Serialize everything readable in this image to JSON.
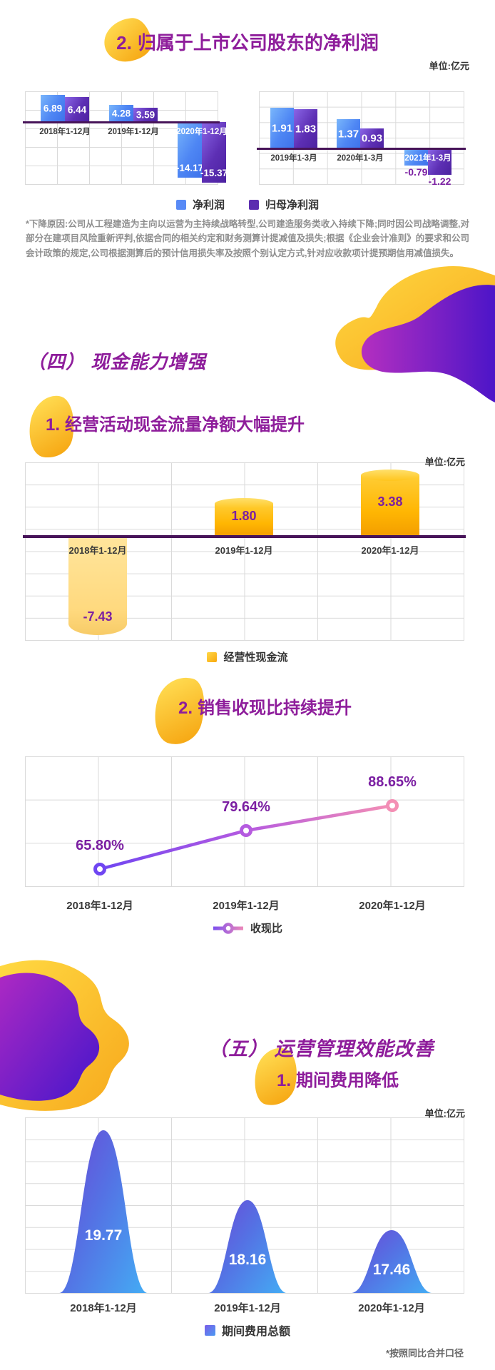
{
  "net_profit": {
    "number": "2.",
    "title": "归属于上市公司股东的净利润",
    "unit": "单位:亿元",
    "legend": [
      "净利润",
      "归母净利润"
    ],
    "footnote": "*下降原因:公司从工程建造为主向以运营为主持续战略转型,公司建造服务类收入持续下降;同时因公司战略调整,对部分在建项目风险重新评判,依据合同的相关约定和财务测算计提减值及损失;根据《企业会计准则》的要求和公司会计政策的规定,公司根据测算后的预计信用损失率及按照个别认定方式,针对应收款项计提预期信用减值损失。"
  },
  "section4": {
    "heading": "（四） 现金能力增强"
  },
  "cash_flow": {
    "number": "1.",
    "title": "经营活动现金流量净额大幅提升",
    "unit": "单位:亿元",
    "legend": "经营性现金流"
  },
  "collection": {
    "number": "2.",
    "title": "销售收现比持续提升",
    "legend": "收现比"
  },
  "section5": {
    "heading": "（五） 运营管理效能改善"
  },
  "expense": {
    "number": "1.",
    "title": "期间费用降低",
    "unit": "单位:亿元",
    "legend": "期间费用总额",
    "footnote": "*按照同比合并口径"
  },
  "chart_data": [
    {
      "id": "net-profit-annual",
      "type": "bar",
      "title": "归属于上市公司股东的净利润(年度)",
      "categories": [
        "2018年1-12月",
        "2019年1-12月",
        "2020年1-12月"
      ],
      "series": [
        {
          "name": "净利润",
          "values": [
            6.89,
            4.28,
            -14.17
          ]
        },
        {
          "name": "归母净利润",
          "values": [
            6.44,
            3.59,
            -15.37
          ]
        }
      ],
      "unit": "亿元",
      "grid": true,
      "legend_position": "bottom"
    },
    {
      "id": "net-profit-q1",
      "type": "bar",
      "title": "归属于上市公司股东的净利润(一季度)",
      "categories": [
        "2019年1-3月",
        "2020年1-3月",
        "2021年1-3月"
      ],
      "series": [
        {
          "name": "净利润",
          "values": [
            1.91,
            1.37,
            -0.79
          ]
        },
        {
          "name": "归母净利润",
          "values": [
            1.83,
            0.93,
            -1.22
          ]
        }
      ],
      "unit": "亿元",
      "grid": true
    },
    {
      "id": "operating-cash-flow",
      "type": "bar",
      "title": "经营活动现金流量净额",
      "categories": [
        "2018年1-12月",
        "2019年1-12月",
        "2020年1-12月"
      ],
      "series": [
        {
          "name": "经营性现金流",
          "values": [
            -7.43,
            1.8,
            3.38
          ]
        }
      ],
      "unit": "亿元",
      "grid": true,
      "legend_position": "bottom"
    },
    {
      "id": "cash-collection-ratio",
      "type": "line",
      "title": "销售收现比",
      "categories": [
        "2018年1-12月",
        "2019年1-12月",
        "2020年1-12月"
      ],
      "series": [
        {
          "name": "收现比",
          "values": [
            65.8,
            79.64,
            88.65
          ]
        }
      ],
      "point_labels": [
        "65.80%",
        "79.64%",
        "88.65%"
      ],
      "unit": "%",
      "grid": true,
      "legend_position": "bottom"
    },
    {
      "id": "period-expense",
      "type": "area",
      "title": "期间费用总额",
      "categories": [
        "2018年1-12月",
        "2019年1-12月",
        "2020年1-12月"
      ],
      "series": [
        {
          "name": "期间费用总额",
          "values": [
            19.77,
            18.16,
            17.46
          ]
        }
      ],
      "unit": "亿元",
      "grid": true,
      "legend_position": "bottom"
    }
  ],
  "colors": {
    "heading_purple": "#8e1d9b",
    "value_label_purple": "#7b1fa2",
    "axis_dark_purple": "#471459",
    "bar_blue": "#4e86f4",
    "bar_purple": "#5d2fb4",
    "cylinder_yellow": "#ffb602",
    "cylinder_pale_yellow": "#ffd97e",
    "line_gradient_start": "#6f46f2",
    "line_gradient_end": "#f48fb4",
    "mountain_purple": "#6a4ad7",
    "mountain_blue": "#45a8f3",
    "footnote_gray": "#8f8f8f"
  }
}
